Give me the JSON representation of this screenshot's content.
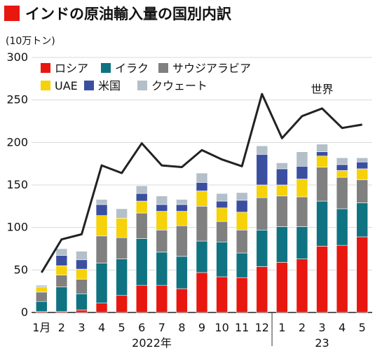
{
  "chart_data": {
    "type": "bar",
    "title": "インドの原油輸入量の国別内訳",
    "ylabel": "(10万トン)",
    "ylim": [
      0,
      300
    ],
    "yticks": [
      0,
      50,
      100,
      150,
      200,
      250,
      300
    ],
    "grid": true,
    "legend_position": "top-left",
    "categories": [
      "1月",
      "2",
      "3",
      "4",
      "5",
      "6",
      "7",
      "8",
      "9",
      "10",
      "11",
      "12",
      "1",
      "2",
      "3",
      "4",
      "5"
    ],
    "year_labels": [
      {
        "label": "2022年",
        "from": 0,
        "to": 11
      },
      {
        "label": "23",
        "from": 12,
        "to": 16
      }
    ],
    "series": [
      {
        "name": "ロシア",
        "color": "#e8170f",
        "values": [
          1,
          1,
          3,
          11,
          20,
          32,
          32,
          28,
          47,
          42,
          41,
          54,
          59,
          63,
          78,
          79,
          89
        ]
      },
      {
        "name": "イラク",
        "color": "#0f7382",
        "values": [
          12,
          29,
          19,
          47,
          43,
          55,
          39,
          38,
          37,
          41,
          29,
          43,
          42,
          38,
          53,
          43,
          40
        ]
      },
      {
        "name": "サウジアラビア",
        "color": "#808080",
        "values": [
          11,
          14,
          17,
          32,
          25,
          30,
          26,
          36,
          41,
          24,
          27,
          38,
          36,
          35,
          40,
          37,
          27
        ]
      },
      {
        "name": "UAE",
        "color": "#f5d20a",
        "values": [
          6,
          11,
          12,
          24,
          23,
          14,
          22,
          17,
          18,
          16,
          21,
          15,
          13,
          21,
          13,
          8,
          13
        ]
      },
      {
        "name": "米国",
        "color": "#3b4fa1",
        "values": [
          0,
          12,
          11,
          13,
          0,
          9,
          8,
          8,
          10,
          8,
          14,
          36,
          19,
          15,
          5,
          7,
          8
        ]
      },
      {
        "name": "クウェート",
        "color": "#b3bfc9",
        "values": [
          2,
          8,
          10,
          6,
          11,
          9,
          10,
          6,
          11,
          9,
          9,
          10,
          7,
          17,
          9,
          8,
          5
        ]
      }
    ],
    "line": {
      "name": "世界",
      "color": "#222222",
      "values": [
        47,
        86,
        92,
        173,
        164,
        199,
        173,
        171,
        191,
        180,
        172,
        257,
        205,
        231,
        240,
        217,
        221
      ]
    }
  }
}
